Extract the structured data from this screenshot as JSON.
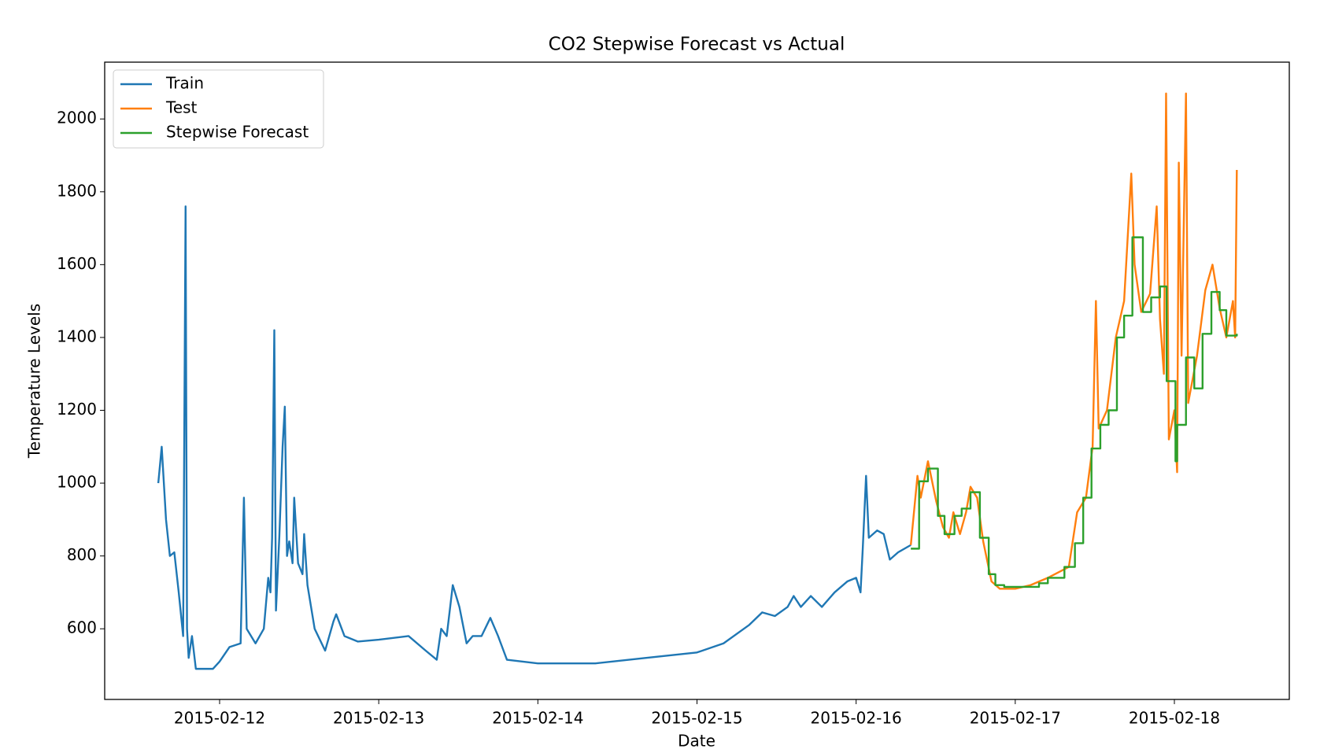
{
  "chart_data": {
    "type": "line",
    "title": "CO2 Stepwise Forecast vs Actual",
    "x_label": "Date",
    "y_label": "Temperature Levels",
    "xlim": [
      "2015-02-11 06:40",
      "2015-02-18 17:20"
    ],
    "xticks": [
      "2015-02-12",
      "2015-02-13",
      "2015-02-14",
      "2015-02-15",
      "2015-02-16",
      "2015-02-17",
      "2015-02-18"
    ],
    "ylim": [
      406,
      2156
    ],
    "yticks": [
      600,
      800,
      1000,
      1200,
      1400,
      1600,
      1800,
      2000
    ],
    "grid": false,
    "legend": "upper left",
    "series": [
      {
        "name": "Train",
        "color": "#1f77b4",
        "drawstyle": "default",
        "x": [
          "2015-02-11 14:45",
          "2015-02-11 15:16",
          "2015-02-11 15:55",
          "2015-02-11 16:30",
          "2015-02-11 17:10",
          "2015-02-11 17:50",
          "2015-02-11 18:30",
          "2015-02-11 18:52",
          "2015-02-11 19:05",
          "2015-02-11 19:20",
          "2015-02-11 19:50",
          "2015-02-11 20:25",
          "2015-02-11 23:00",
          "2015-02-12 00:00",
          "2015-02-12 01:30",
          "2015-02-12 03:10",
          "2015-02-12 03:40",
          "2015-02-12 04:05",
          "2015-02-12 05:25",
          "2015-02-12 06:40",
          "2015-02-12 07:20",
          "2015-02-12 07:40",
          "2015-02-12 07:55",
          "2015-02-12 08:15",
          "2015-02-12 08:30",
          "2015-02-12 09:00",
          "2015-02-12 09:30",
          "2015-02-12 09:50",
          "2015-02-12 10:10",
          "2015-02-12 10:30",
          "2015-02-12 11:00",
          "2015-02-12 11:15",
          "2015-02-12 11:50",
          "2015-02-12 12:30",
          "2015-02-12 12:45",
          "2015-02-12 13:15",
          "2015-02-12 14:20",
          "2015-02-12 15:55",
          "2015-02-12 17:10",
          "2015-02-12 17:35",
          "2015-02-12 18:50",
          "2015-02-12 20:50",
          "2015-02-13 00:00",
          "2015-02-13 04:30",
          "2015-02-13 07:05",
          "2015-02-13 08:45",
          "2015-02-13 09:25",
          "2015-02-13 10:15",
          "2015-02-13 11:10",
          "2015-02-13 12:10",
          "2015-02-13 13:15",
          "2015-02-13 14:10",
          "2015-02-13 15:30",
          "2015-02-13 16:50",
          "2015-02-13 18:00",
          "2015-02-13 19:20",
          "2015-02-14 00:00",
          "2015-02-14 08:40",
          "2015-02-14 16:20",
          "2015-02-15 00:00",
          "2015-02-15 04:00",
          "2015-02-15 07:50",
          "2015-02-15 09:50",
          "2015-02-15 11:45",
          "2015-02-15 13:40",
          "2015-02-15 14:35",
          "2015-02-15 15:40",
          "2015-02-15 17:10",
          "2015-02-15 18:50",
          "2015-02-15 20:45",
          "2015-02-15 22:40",
          "2015-02-16 00:00",
          "2015-02-16 00:40",
          "2015-02-16 01:00",
          "2015-02-16 01:30",
          "2015-02-16 01:55",
          "2015-02-16 03:10",
          "2015-02-16 04:10",
          "2015-02-16 05:05",
          "2015-02-16 06:20",
          "2015-02-16 08:15"
        ],
        "values": [
          1000,
          1100,
          900,
          800,
          810,
          700,
          580,
          1760,
          600,
          520,
          580,
          490,
          490,
          510,
          550,
          560,
          960,
          600,
          560,
          600,
          740,
          700,
          850,
          1420,
          650,
          850,
          1100,
          1210,
          800,
          840,
          780,
          960,
          780,
          750,
          860,
          720,
          600,
          540,
          620,
          640,
          580,
          565,
          570,
          580,
          540,
          515,
          600,
          580,
          720,
          660,
          560,
          580,
          580,
          630,
          580,
          515,
          505,
          505,
          520,
          535,
          560,
          610,
          645,
          635,
          660,
          690,
          660,
          690,
          660,
          700,
          730,
          740,
          700,
          820,
          1020,
          850,
          870,
          860,
          790,
          810,
          830
        ]
      },
      {
        "name": "Test",
        "color": "#ff7f0e",
        "drawstyle": "default",
        "x": [
          "2015-02-16 08:15",
          "2015-02-16 09:15",
          "2015-02-16 09:45",
          "2015-02-16 10:50",
          "2015-02-16 12:05",
          "2015-02-16 13:05",
          "2015-02-16 14:00",
          "2015-02-16 14:40",
          "2015-02-16 15:40",
          "2015-02-16 16:35",
          "2015-02-16 17:15",
          "2015-02-16 18:15",
          "2015-02-16 19:10",
          "2015-02-16 20:25",
          "2015-02-16 21:40",
          "2015-02-17 00:00",
          "2015-02-17 02:20",
          "2015-02-17 04:55",
          "2015-02-17 08:05",
          "2015-02-17 09:20",
          "2015-02-17 10:40",
          "2015-02-17 11:40",
          "2015-02-17 12:10",
          "2015-02-17 12:35",
          "2015-02-17 13:50",
          "2015-02-17 15:10",
          "2015-02-17 16:25",
          "2015-02-17 17:30",
          "2015-02-17 18:00",
          "2015-02-17 19:00",
          "2015-02-17 20:20",
          "2015-02-17 21:20",
          "2015-02-17 21:50",
          "2015-02-17 22:25",
          "2015-02-17 22:45",
          "2015-02-17 23:10",
          "2015-02-18 00:00",
          "2015-02-18 00:25",
          "2015-02-18 00:40",
          "2015-02-18 01:05",
          "2015-02-18 01:45",
          "2015-02-18 02:05",
          "2015-02-18 03:25",
          "2015-02-18 04:40",
          "2015-02-18 05:45",
          "2015-02-18 06:50",
          "2015-02-18 07:50",
          "2015-02-18 08:50",
          "2015-02-18 09:10",
          "2015-02-18 09:25"
        ],
        "values": [
          830,
          1020,
          960,
          1060,
          950,
          880,
          850,
          920,
          860,
          920,
          990,
          960,
          840,
          730,
          710,
          710,
          720,
          740,
          770,
          920,
          960,
          1100,
          1500,
          1150,
          1200,
          1400,
          1500,
          1850,
          1600,
          1470,
          1520,
          1760,
          1450,
          1300,
          2070,
          1120,
          1200,
          1030,
          1880,
          1350,
          2070,
          1220,
          1350,
          1530,
          1600,
          1480,
          1400,
          1500,
          1400,
          1860
        ]
      },
      {
        "name": "Stepwise Forecast",
        "color": "#2ca02c",
        "drawstyle": "steps-post",
        "x": [
          "2015-02-16 08:15",
          "2015-02-16 09:30",
          "2015-02-16 10:50",
          "2015-02-16 12:20",
          "2015-02-16 13:20",
          "2015-02-16 14:50",
          "2015-02-16 15:55",
          "2015-02-16 17:15",
          "2015-02-16 18:40",
          "2015-02-16 20:00",
          "2015-02-16 21:00",
          "2015-02-16 22:20",
          "2015-02-17 00:25",
          "2015-02-17 03:35",
          "2015-02-17 04:55",
          "2015-02-17 07:25",
          "2015-02-17 09:00",
          "2015-02-17 10:15",
          "2015-02-17 11:30",
          "2015-02-17 12:50",
          "2015-02-17 14:05",
          "2015-02-17 15:20",
          "2015-02-17 16:25",
          "2015-02-17 17:40",
          "2015-02-17 19:15",
          "2015-02-17 20:30",
          "2015-02-17 21:50",
          "2015-02-17 22:50",
          "2015-02-18 00:10",
          "2015-02-18 00:25",
          "2015-02-18 01:45",
          "2015-02-18 03:00",
          "2015-02-18 04:15",
          "2015-02-18 05:35",
          "2015-02-18 06:50",
          "2015-02-18 07:50",
          "2015-02-18 09:25"
        ],
        "values": [
          820,
          1005,
          1040,
          910,
          860,
          910,
          930,
          975,
          850,
          750,
          720,
          715,
          715,
          725,
          740,
          770,
          835,
          960,
          1095,
          1160,
          1200,
          1400,
          1460,
          1675,
          1470,
          1510,
          1540,
          1280,
          1060,
          1160,
          1345,
          1260,
          1410,
          1525,
          1475,
          1405,
          1410
        ]
      }
    ]
  }
}
